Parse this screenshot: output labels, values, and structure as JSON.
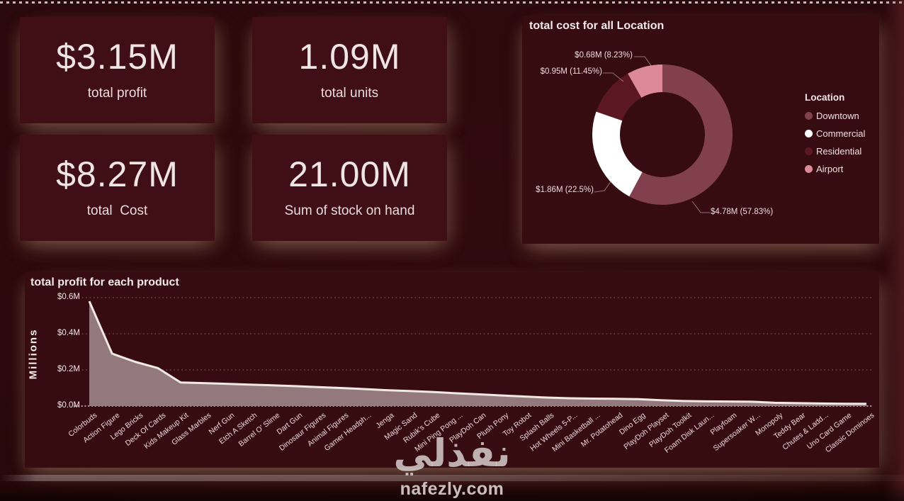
{
  "page": {
    "watermark_title": "نفذلي",
    "watermark_site": "nafezly.com"
  },
  "kpis": [
    {
      "value": "$3.15M",
      "label": "total profit"
    },
    {
      "value": "1.09M",
      "label": "total units"
    },
    {
      "value": "$8.27M",
      "label": "total  Cost"
    },
    {
      "value": "21.00M",
      "label": "Sum of stock on hand"
    }
  ],
  "chart_data": [
    {
      "type": "pie",
      "donut": true,
      "title": "total cost for all Location",
      "legend_title": "Location",
      "legend_position": "right",
      "start_angle_deg": 0,
      "direction": "clockwise",
      "categories": [
        "Downtown",
        "Commercial",
        "Residential",
        "Airport"
      ],
      "values": [
        4.78,
        1.86,
        0.95,
        0.68
      ],
      "percents": [
        57.83,
        22.5,
        11.45,
        8.23
      ],
      "data_labels": [
        "$4.78M (57.83%)",
        "$1.86M (22.5%)",
        "$0.95M (11.45%)",
        "$0.68M (8.23%)"
      ],
      "colors": [
        "#81404c",
        "#ffffff",
        "#5b1822",
        "#dd8997"
      ]
    },
    {
      "type": "area",
      "title": "total profit for each product",
      "xlabel": "",
      "ylabel": "Millions",
      "ytick_labels": [
        "$0.0M",
        "$0.2M",
        "$0.4M",
        "$0.6M"
      ],
      "yticks": [
        0.0,
        0.2,
        0.4,
        0.6
      ],
      "ylim": [
        0,
        0.62
      ],
      "grid": "dotted-horizontal",
      "line_color": "#f1e9e4",
      "fill_color": "#93797d",
      "categories": [
        "Colorbuds",
        "Action Figure",
        "Lego Bricks",
        "Deck Of Cards",
        "Kids Makeup Kit",
        "Glass Marbles",
        "Nerf Gun",
        "Etch A Sketch",
        "Barrel O' Slime",
        "Dart Gun",
        "Dinosaur Figures",
        "Animal Figures",
        "Gamer Headph...",
        "Jenga",
        "Magic Sand",
        "Rubik's Cube",
        "Mini Ping Pong ...",
        "PlayDoh Can",
        "Plush Pony",
        "Toy Robot",
        "Splash Balls",
        "Hot Wheels 5-P...",
        "Mini Basketball ...",
        "Mr. Potatohead",
        "Dino Egg",
        "PlayDoh Playset",
        "PlayDoh Toolkit",
        "Foam Disk Laun...",
        "Playfoam",
        "Supersoaker W...",
        "Monopoly",
        "Teddy Bear",
        "Chutes & Ladd...",
        "Uno Card Game",
        "Classic Dominoes"
      ],
      "values": [
        0.58,
        0.29,
        0.245,
        0.21,
        0.13,
        0.127,
        0.123,
        0.119,
        0.115,
        0.11,
        0.105,
        0.1,
        0.094,
        0.088,
        0.083,
        0.078,
        0.071,
        0.065,
        0.059,
        0.053,
        0.047,
        0.043,
        0.041,
        0.04,
        0.038,
        0.032,
        0.028,
        0.026,
        0.025,
        0.024,
        0.018,
        0.016,
        0.014,
        0.013,
        0.012
      ]
    }
  ]
}
